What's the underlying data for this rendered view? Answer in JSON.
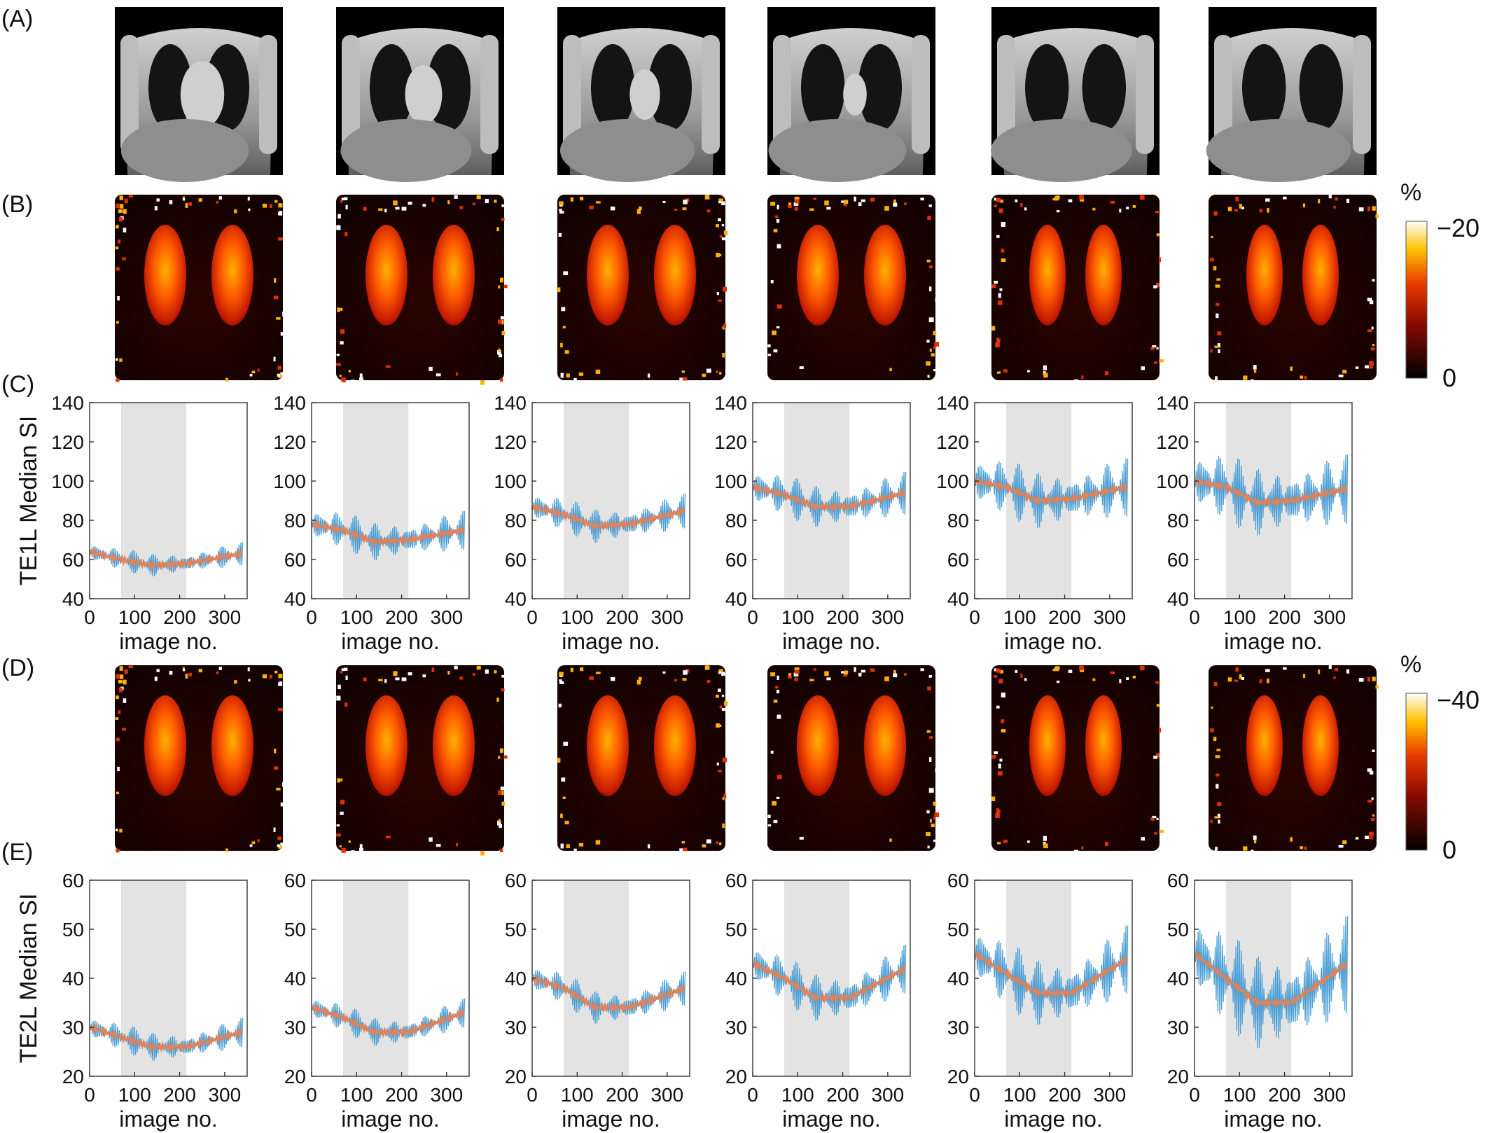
{
  "panels": {
    "a": "(A)",
    "b": "(B)",
    "c": "(C)",
    "d": "(D)",
    "e": "(E)"
  },
  "colorbars": [
    {
      "unit": "%",
      "max_label": "−20",
      "min_label": "0"
    },
    {
      "unit": "%",
      "max_label": "−40",
      "min_label": "0"
    }
  ],
  "colors": {
    "raw_signal": "#4a9fd6",
    "smoothed_signal": "#e0825a",
    "shaded_window": "#e3e3e3",
    "axis": "#333333"
  },
  "chart_data": [
    {
      "type": "line",
      "row": "C",
      "ylabel": "TE1L Median SI",
      "xlabel": "image no.",
      "xlim": [
        0,
        350
      ],
      "ylim": [
        40,
        140
      ],
      "xticks": [
        0,
        100,
        200,
        300
      ],
      "yticks": [
        40,
        60,
        80,
        100,
        120,
        140
      ],
      "xtick_labels": [
        "0",
        "100",
        "200",
        "300"
      ],
      "ytick_labels": [
        "40",
        "60",
        "80",
        "100",
        "120",
        "140"
      ],
      "shaded_interval": [
        70,
        215
      ],
      "series": [
        {
          "x": [
            0,
            70,
            140,
            215,
            340
          ],
          "smoothed": [
            64,
            60,
            57,
            58,
            63
          ],
          "amplitude": 6
        },
        {
          "x": [
            0,
            70,
            140,
            215,
            340
          ],
          "smoothed": [
            78,
            75,
            69,
            70,
            75
          ],
          "amplitude": 10
        },
        {
          "x": [
            0,
            70,
            140,
            215,
            340
          ],
          "smoothed": [
            87,
            83,
            77,
            78,
            85
          ],
          "amplitude": 9
        },
        {
          "x": [
            0,
            70,
            140,
            215,
            340
          ],
          "smoothed": [
            97,
            93,
            87,
            87,
            94
          ],
          "amplitude": 11
        },
        {
          "x": [
            0,
            70,
            140,
            215,
            340
          ],
          "smoothed": [
            100,
            97,
            90,
            91,
            97
          ],
          "amplitude": 15
        },
        {
          "x": [
            0,
            70,
            140,
            215,
            340
          ],
          "smoothed": [
            100,
            97,
            89,
            90,
            96
          ],
          "amplitude": 18
        }
      ]
    },
    {
      "type": "line",
      "row": "E",
      "ylabel": "TE2L Median SI",
      "xlabel": "image no.",
      "xlim": [
        0,
        350
      ],
      "ylim": [
        20,
        60
      ],
      "xticks": [
        0,
        100,
        200,
        300
      ],
      "yticks": [
        20,
        30,
        40,
        50,
        60
      ],
      "xtick_labels": [
        "0",
        "100",
        "200",
        "300"
      ],
      "ytick_labels": [
        "20",
        "30",
        "40",
        "50",
        "60"
      ],
      "shaded_interval": [
        70,
        215
      ],
      "series": [
        {
          "x": [
            0,
            70,
            140,
            215,
            340
          ],
          "smoothed": [
            30,
            28,
            26,
            26,
            29
          ],
          "amplitude": 3
        },
        {
          "x": [
            0,
            70,
            140,
            215,
            340
          ],
          "smoothed": [
            34,
            32,
            29,
            29,
            33
          ],
          "amplitude": 3
        },
        {
          "x": [
            0,
            70,
            140,
            215,
            340
          ],
          "smoothed": [
            40,
            38,
            34,
            34,
            38
          ],
          "amplitude": 3.5
        },
        {
          "x": [
            0,
            70,
            140,
            215,
            340
          ],
          "smoothed": [
            43,
            40,
            36,
            36,
            42
          ],
          "amplitude": 5
        },
        {
          "x": [
            0,
            70,
            140,
            215,
            340
          ],
          "smoothed": [
            45,
            41,
            37,
            37,
            44
          ],
          "amplitude": 7
        },
        {
          "x": [
            0,
            70,
            140,
            215,
            340
          ],
          "smoothed": [
            45,
            40,
            35,
            35,
            43
          ],
          "amplitude": 10
        }
      ]
    }
  ]
}
